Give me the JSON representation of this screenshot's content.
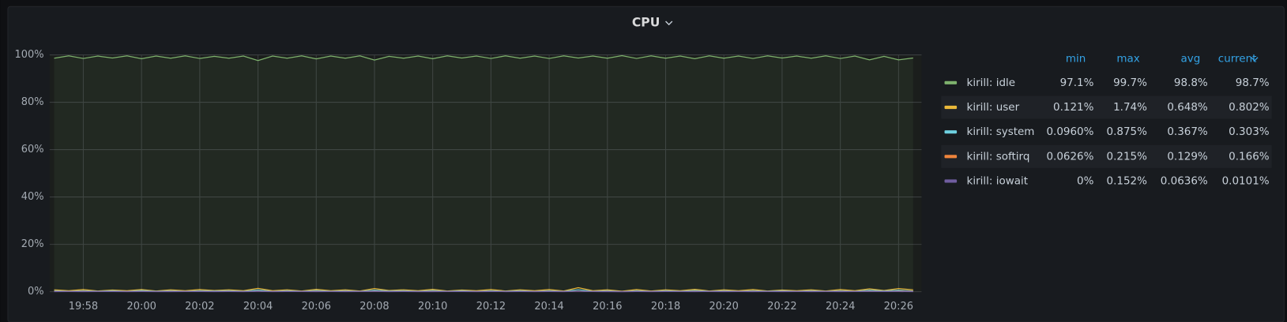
{
  "chart_data": {
    "type": "line",
    "title": "CPU",
    "categories": [
      null,
      null,
      "19:58",
      null,
      null,
      null,
      "20:00",
      null,
      null,
      null,
      "20:02",
      null,
      null,
      null,
      "20:04",
      null,
      null,
      null,
      "20:06",
      null,
      null,
      null,
      "20:08",
      null,
      null,
      null,
      "20:10",
      null,
      null,
      null,
      "20:12",
      null,
      null,
      null,
      "20:14",
      null,
      null,
      null,
      "20:16",
      null,
      null,
      null,
      "20:18",
      null,
      null,
      null,
      "20:20",
      null,
      null,
      null,
      "20:22",
      null,
      null,
      null,
      "20:24",
      null,
      null,
      null,
      "20:26",
      null
    ],
    "ylim": [
      0,
      100
    ],
    "yticks": [
      {
        "value": 0,
        "label": "0%"
      },
      {
        "value": 20,
        "label": "20%"
      },
      {
        "value": 40,
        "label": "40%"
      },
      {
        "value": 60,
        "label": "60%"
      },
      {
        "value": 80,
        "label": "80%"
      },
      {
        "value": 100,
        "label": "100%"
      }
    ],
    "grid": true,
    "stat_columns": [
      "min",
      "max",
      "avg",
      "current"
    ],
    "series": [
      {
        "name": "kirill: idle",
        "color": "#7eb26d",
        "fill": true,
        "stats": [
          "97.1%",
          "99.7%",
          "98.8%",
          "98.7%"
        ],
        "values": [
          98.6,
          99.6,
          98.5,
          99.5,
          98.7,
          99.6,
          98.4,
          99.5,
          98.6,
          99.6,
          98.5,
          99.4,
          98.6,
          99.5,
          97.6,
          99.5,
          98.6,
          99.6,
          98.3,
          99.5,
          98.6,
          99.6,
          97.8,
          99.4,
          98.6,
          99.5,
          98.4,
          99.6,
          98.7,
          99.5,
          98.5,
          99.6,
          98.6,
          99.5,
          98.5,
          99.6,
          98.7,
          99.5,
          98.6,
          99.7,
          98.5,
          99.6,
          98.6,
          99.5,
          98.4,
          99.6,
          98.6,
          99.5,
          98.5,
          99.6,
          98.7,
          99.5,
          98.6,
          99.6,
          98.5,
          99.5,
          97.9,
          99.4,
          97.9,
          98.7
        ]
      },
      {
        "name": "kirill: user",
        "color": "#eab839",
        "fill": false,
        "stats": [
          "0.121%",
          "1.74%",
          "0.648%",
          "0.802%"
        ],
        "values": [
          0.8,
          0.4,
          0.9,
          0.3,
          0.7,
          0.4,
          0.9,
          0.3,
          0.8,
          0.4,
          0.9,
          0.5,
          0.8,
          0.4,
          1.4,
          0.4,
          0.8,
          0.3,
          1.0,
          0.4,
          0.8,
          0.3,
          1.3,
          0.5,
          0.8,
          0.4,
          1.0,
          0.3,
          0.7,
          0.4,
          0.9,
          0.3,
          0.8,
          0.4,
          0.9,
          0.3,
          1.7,
          0.4,
          0.8,
          0.2,
          0.9,
          0.3,
          0.8,
          0.4,
          1.0,
          0.3,
          0.8,
          0.4,
          0.9,
          0.3,
          0.7,
          0.4,
          0.8,
          0.3,
          0.9,
          0.4,
          1.2,
          0.5,
          1.3,
          0.8
        ]
      },
      {
        "name": "kirill: system",
        "color": "#6ed0e0",
        "fill": false,
        "stats": [
          "0.0960%",
          "0.875%",
          "0.367%",
          "0.303%"
        ],
        "values": [
          0.4,
          0.2,
          0.4,
          0.2,
          0.4,
          0.2,
          0.5,
          0.2,
          0.4,
          0.2,
          0.4,
          0.3,
          0.4,
          0.2,
          0.7,
          0.2,
          0.4,
          0.2,
          0.5,
          0.2,
          0.4,
          0.2,
          0.6,
          0.3,
          0.4,
          0.2,
          0.5,
          0.2,
          0.4,
          0.2,
          0.4,
          0.2,
          0.4,
          0.2,
          0.4,
          0.2,
          0.8,
          0.2,
          0.4,
          0.1,
          0.4,
          0.2,
          0.4,
          0.2,
          0.5,
          0.2,
          0.4,
          0.2,
          0.4,
          0.2,
          0.4,
          0.2,
          0.4,
          0.2,
          0.4,
          0.2,
          0.6,
          0.3,
          0.6,
          0.3
        ]
      },
      {
        "name": "kirill: softirq",
        "color": "#ef843c",
        "fill": false,
        "stats": [
          "0.0626%",
          "0.215%",
          "0.129%",
          "0.166%"
        ],
        "values": [
          0.15,
          0.1,
          0.16,
          0.09,
          0.14,
          0.1,
          0.17,
          0.08,
          0.15,
          0.11,
          0.14,
          0.1,
          0.15,
          0.09,
          0.2,
          0.1,
          0.15,
          0.1,
          0.16,
          0.09,
          0.14,
          0.1,
          0.19,
          0.1,
          0.15,
          0.09,
          0.16,
          0.1,
          0.14,
          0.1,
          0.15,
          0.09,
          0.14,
          0.1,
          0.15,
          0.1,
          0.21,
          0.1,
          0.15,
          0.07,
          0.14,
          0.1,
          0.15,
          0.09,
          0.16,
          0.1,
          0.14,
          0.1,
          0.15,
          0.09,
          0.14,
          0.1,
          0.15,
          0.1,
          0.14,
          0.1,
          0.18,
          0.11,
          0.19,
          0.17
        ]
      },
      {
        "name": "kirill: iowait",
        "color": "#705da0",
        "fill": false,
        "stats": [
          "0%",
          "0.152%",
          "0.0636%",
          "0.0101%"
        ],
        "values": [
          0.05,
          0.08,
          0.03,
          0.07,
          0.06,
          0.02,
          0.09,
          0.05,
          0.04,
          0.08,
          0.06,
          0.03,
          0.07,
          0.05,
          0.12,
          0.04,
          0.06,
          0.08,
          0.03,
          0.07,
          0.05,
          0.06,
          0.1,
          0.04,
          0.07,
          0.05,
          0.03,
          0.08,
          0.06,
          0.04,
          0.07,
          0.05,
          0.06,
          0.03,
          0.08,
          0.05,
          0.15,
          0.06,
          0.04,
          0.0,
          0.07,
          0.05,
          0.06,
          0.08,
          0.04,
          0.07,
          0.05,
          0.06,
          0.03,
          0.08,
          0.05,
          0.07,
          0.04,
          0.06,
          0.05,
          0.08,
          0.09,
          0.06,
          0.07,
          0.01
        ]
      }
    ]
  }
}
